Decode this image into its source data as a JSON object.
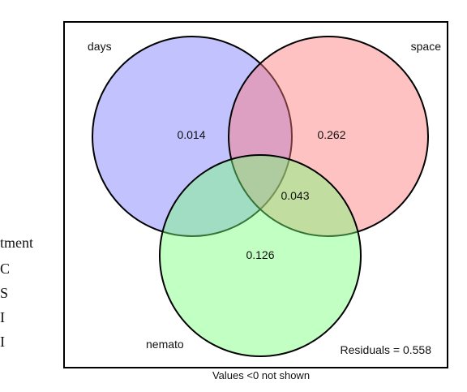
{
  "left_legend": {
    "lines": [
      "tment",
      "C",
      "S",
      "I",
      "I"
    ]
  },
  "diagram": {
    "sets": [
      {
        "name": "days",
        "color": "#7777ff"
      },
      {
        "name": "space",
        "color": "#ff7777"
      },
      {
        "name": "nemato",
        "color": "#77ff77"
      }
    ],
    "regions": {
      "days_only": "0.014",
      "space_only": "0.262",
      "center": "0.043",
      "nemato_only": "0.126"
    },
    "residuals": "Residuals = 0.558",
    "footer": "Values <0 not shown"
  }
}
